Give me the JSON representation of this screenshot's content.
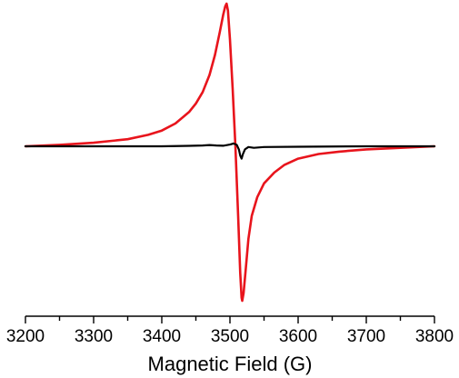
{
  "chart_data": {
    "type": "line",
    "title": "",
    "xlabel": "Magnetic Field (G)",
    "ylabel": "",
    "xlim": [
      3200,
      3800
    ],
    "ylim": [
      -1.0,
      1.0
    ],
    "x_ticks": [
      3200,
      3300,
      3400,
      3500,
      3600,
      3700,
      3800
    ],
    "x_tick_labels": [
      "3200",
      "3300",
      "3400",
      "3500",
      "3600",
      "3700",
      "3800"
    ],
    "x_minor_step": 50,
    "grid": false,
    "legend": "none",
    "y_axis_visible": false,
    "series": [
      {
        "color": "#e8141c",
        "x": [
          3200,
          3250,
          3300,
          3350,
          3380,
          3400,
          3420,
          3440,
          3450,
          3460,
          3470,
          3478,
          3485,
          3490,
          3493,
          3495,
          3497,
          3500,
          3504,
          3508,
          3512,
          3515,
          3517,
          3518,
          3520,
          3523,
          3527,
          3532,
          3540,
          3550,
          3565,
          3580,
          3600,
          3630,
          3660,
          3700,
          3750,
          3800
        ],
        "y": [
          0.0,
          0.01,
          0.025,
          0.05,
          0.08,
          0.11,
          0.16,
          0.24,
          0.3,
          0.38,
          0.5,
          0.64,
          0.8,
          0.92,
          0.98,
          1.0,
          0.95,
          0.75,
          0.4,
          0.0,
          -0.45,
          -0.82,
          -0.98,
          -1.0,
          -0.95,
          -0.8,
          -0.6,
          -0.45,
          -0.33,
          -0.24,
          -0.17,
          -0.12,
          -0.08,
          -0.05,
          -0.035,
          -0.02,
          -0.01,
          0.0
        ]
      },
      {
        "color": "#000000",
        "x": [
          3200,
          3300,
          3400,
          3440,
          3460,
          3470,
          3480,
          3490,
          3500,
          3505,
          3510,
          3513,
          3515,
          3517,
          3519,
          3522,
          3527,
          3535,
          3550,
          3600,
          3700,
          3800
        ],
        "y": [
          0.0,
          0.0,
          0.0,
          0.003,
          0.006,
          0.009,
          0.006,
          0.004,
          0.012,
          0.02,
          0.01,
          -0.02,
          -0.06,
          -0.08,
          -0.05,
          -0.02,
          -0.005,
          -0.01,
          -0.005,
          -0.003,
          0.0,
          0.0
        ]
      }
    ]
  }
}
